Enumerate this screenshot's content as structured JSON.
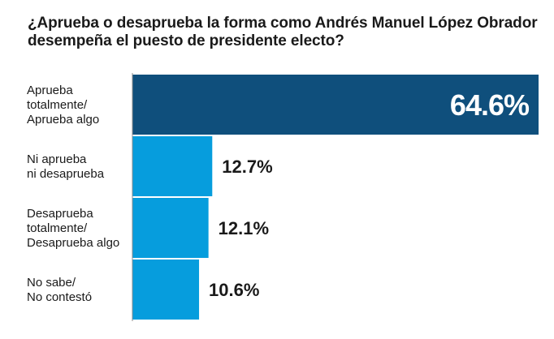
{
  "title": {
    "line1": "¿Aprueba o desaprueba la forma como Andrés Manuel López Obrador",
    "line2": "desempeña el puesto de presidente electo?"
  },
  "colors": {
    "highlight_bar": "#0f4f7c",
    "bar": "#069ddd",
    "text": "#1a1a1a",
    "value_on_bar": "#ffffff",
    "baseline": "#8c8c8c"
  },
  "chart_data": {
    "type": "bar",
    "orientation": "horizontal",
    "categories": [
      [
        "Aprueba",
        "totalmente/",
        "Aprueba algo"
      ],
      [
        "Ni aprueba",
        "ni desaprueba"
      ],
      [
        "Desaprueba",
        "totalmente/",
        "Desaprueba algo"
      ],
      [
        "No sabe/",
        "No contestó"
      ]
    ],
    "values": [
      64.6,
      12.7,
      12.1,
      10.6
    ],
    "value_labels": [
      "64.6%",
      "12.7%",
      "12.1%",
      "10.6%"
    ],
    "xlim": [
      0,
      64.6
    ],
    "highlight_index": 0,
    "grid": false,
    "legend": "none"
  }
}
